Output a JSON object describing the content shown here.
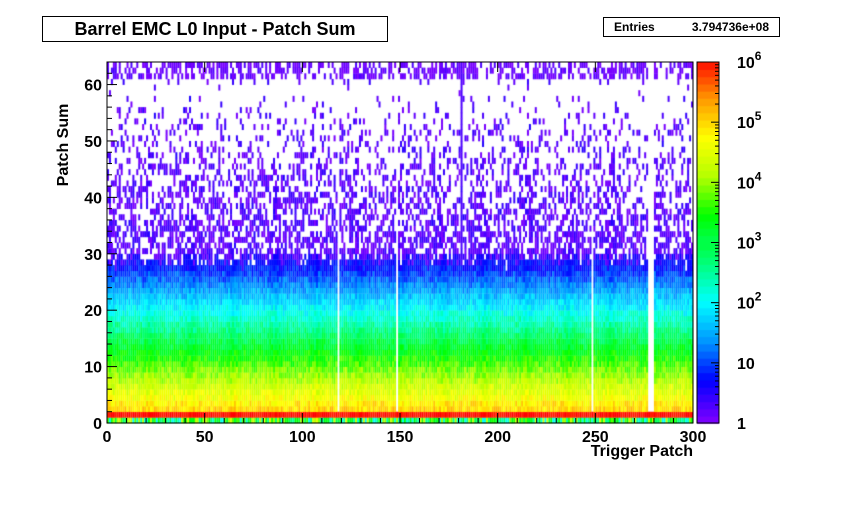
{
  "chart_data": {
    "type": "heatmap",
    "title": "Barrel EMC L0 Input - Patch Sum",
    "xlabel": "Trigger Patch",
    "ylabel": "Patch Sum",
    "xlim": [
      0,
      300
    ],
    "ylim": [
      0,
      64
    ],
    "x_ticks": [
      "0",
      "50",
      "100",
      "150",
      "200",
      "250",
      "300"
    ],
    "y_ticks": [
      "0",
      "10",
      "20",
      "30",
      "40",
      "50",
      "60"
    ],
    "z_scale": "log",
    "zlim": [
      1,
      1000000
    ],
    "z_ticks": [
      "1",
      "10",
      "10^2",
      "10^3",
      "10^4",
      "10^5",
      "10^6"
    ],
    "stats": {
      "label": "Entries",
      "value": "3.794736e+08"
    },
    "empty_columns": [
      118,
      148,
      248,
      277,
      278,
      279
    ],
    "hot_columns": [
      181
    ],
    "peak_row": 1
  }
}
